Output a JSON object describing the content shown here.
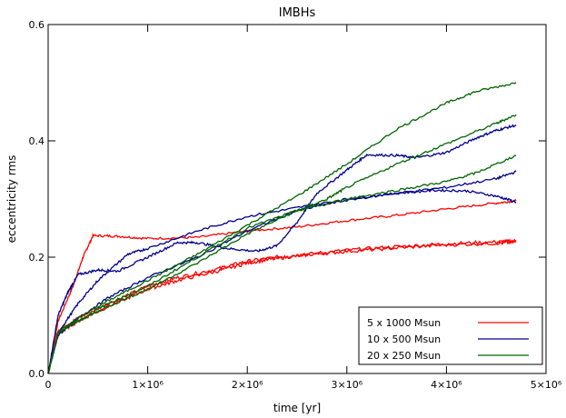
{
  "chart_data": {
    "type": "line",
    "title": "IMBHs",
    "xlabel": "time [yr]",
    "ylabel": "eccentricity rms",
    "xlim": [
      0,
      5000000
    ],
    "ylim": [
      0,
      0.6
    ],
    "xticks": [
      {
        "value": 0,
        "label": "0"
      },
      {
        "value": 1000000,
        "label": "1×10⁶"
      },
      {
        "value": 2000000,
        "label": "2×10⁶"
      },
      {
        "value": 3000000,
        "label": "3×10⁶"
      },
      {
        "value": 4000000,
        "label": "4×10⁶"
      },
      {
        "value": 5000000,
        "label": "5×10⁶"
      }
    ],
    "yticks": [
      {
        "value": 0.0,
        "label": "0.0"
      },
      {
        "value": 0.2,
        "label": "0.2"
      },
      {
        "value": 0.4,
        "label": "0.4"
      },
      {
        "value": 0.6,
        "label": "0.6"
      }
    ],
    "grid": false,
    "legend_position": "bottom-right",
    "legend": [
      {
        "label": "5 x 1000 Msun",
        "color": "#ff0000"
      },
      {
        "label": "10 x 500 Msun",
        "color": "#00008b"
      },
      {
        "label": "20 x 250 Msun",
        "color": "#006400"
      }
    ],
    "series": [
      {
        "group": 0,
        "color": "#ff0000",
        "noise": 0.002,
        "x": [
          0,
          100000,
          250000,
          350000,
          450000,
          700000,
          1000000,
          1500000,
          2000000,
          2500000,
          3000000,
          3500000,
          4000000,
          4500000,
          4700000
        ],
        "y": [
          0.0,
          0.09,
          0.15,
          0.2,
          0.237,
          0.236,
          0.232,
          0.234,
          0.245,
          0.252,
          0.263,
          0.272,
          0.283,
          0.293,
          0.297
        ]
      },
      {
        "group": 0,
        "color": "#ff0000",
        "noise": 0.003,
        "x": [
          0,
          100000,
          300000,
          600000,
          1000000,
          1300000,
          1700000,
          2000000,
          2300000,
          2600000,
          3000000,
          3500000,
          4000000,
          4500000,
          4700000
        ],
        "y": [
          0.0,
          0.075,
          0.095,
          0.12,
          0.15,
          0.165,
          0.18,
          0.193,
          0.2,
          0.205,
          0.212,
          0.218,
          0.223,
          0.226,
          0.228
        ]
      },
      {
        "group": 0,
        "color": "#ff0000",
        "noise": 0.003,
        "x": [
          0,
          100000,
          300000,
          600000,
          1000000,
          1300000,
          1700000,
          2000000,
          2300000,
          2600000,
          3000000,
          3500000,
          4000000,
          4500000,
          4700000
        ],
        "y": [
          0.0,
          0.07,
          0.09,
          0.115,
          0.145,
          0.16,
          0.176,
          0.19,
          0.198,
          0.204,
          0.21,
          0.216,
          0.221,
          0.224,
          0.226
        ]
      },
      {
        "group": 1,
        "color": "#00008b",
        "noise": 0.002,
        "x": [
          0,
          100000,
          200000,
          300000,
          500000,
          700000,
          1000000,
          1300000,
          1500000,
          1800000,
          2100000,
          2300000,
          2500000,
          2700000,
          3000000,
          3200000,
          3500000,
          3700000,
          4000000,
          4300000,
          4500000,
          4700000
        ],
        "y": [
          0.0,
          0.1,
          0.14,
          0.17,
          0.178,
          0.176,
          0.2,
          0.225,
          0.225,
          0.215,
          0.21,
          0.22,
          0.26,
          0.31,
          0.35,
          0.376,
          0.375,
          0.371,
          0.38,
          0.405,
          0.418,
          0.427
        ]
      },
      {
        "group": 1,
        "color": "#00008b",
        "noise": 0.002,
        "x": [
          0,
          100000,
          300000,
          500000,
          800000,
          1000000,
          1500000,
          2000000,
          2500000,
          3000000,
          3500000,
          3900000,
          4200000,
          4500000,
          4700000
        ],
        "y": [
          0.0,
          0.07,
          0.12,
          0.16,
          0.205,
          0.215,
          0.245,
          0.27,
          0.285,
          0.3,
          0.31,
          0.315,
          0.314,
          0.305,
          0.295
        ]
      },
      {
        "group": 1,
        "color": "#00008b",
        "noise": 0.002,
        "x": [
          0,
          100000,
          300000,
          600000,
          1000000,
          1500000,
          2000000,
          2500000,
          3000000,
          3500000,
          4000000,
          4500000,
          4700000
        ],
        "y": [
          0.0,
          0.065,
          0.095,
          0.13,
          0.165,
          0.2,
          0.245,
          0.28,
          0.298,
          0.31,
          0.32,
          0.335,
          0.347
        ]
      },
      {
        "group": 2,
        "color": "#006400",
        "noise": 0.002,
        "x": [
          0,
          100000,
          300000,
          600000,
          1000000,
          1500000,
          2000000,
          2500000,
          3000000,
          3500000,
          4000000,
          4300000,
          4700000
        ],
        "y": [
          0.0,
          0.07,
          0.095,
          0.125,
          0.16,
          0.205,
          0.255,
          0.305,
          0.36,
          0.42,
          0.465,
          0.485,
          0.5
        ]
      },
      {
        "group": 2,
        "color": "#006400",
        "noise": 0.002,
        "x": [
          0,
          100000,
          300000,
          600000,
          1000000,
          1500000,
          2000000,
          2500000,
          2800000,
          3000000,
          3500000,
          4000000,
          4500000,
          4700000
        ],
        "y": [
          0.0,
          0.07,
          0.09,
          0.115,
          0.145,
          0.19,
          0.24,
          0.28,
          0.3,
          0.32,
          0.36,
          0.395,
          0.43,
          0.445
        ]
      },
      {
        "group": 2,
        "color": "#006400",
        "noise": 0.002,
        "x": [
          0,
          100000,
          300000,
          600000,
          1000000,
          1500000,
          2000000,
          2500000,
          3000000,
          3500000,
          4000000,
          4300000,
          4700000
        ],
        "y": [
          0.0,
          0.07,
          0.09,
          0.12,
          0.15,
          0.2,
          0.25,
          0.28,
          0.3,
          0.315,
          0.33,
          0.345,
          0.375
        ]
      }
    ]
  }
}
